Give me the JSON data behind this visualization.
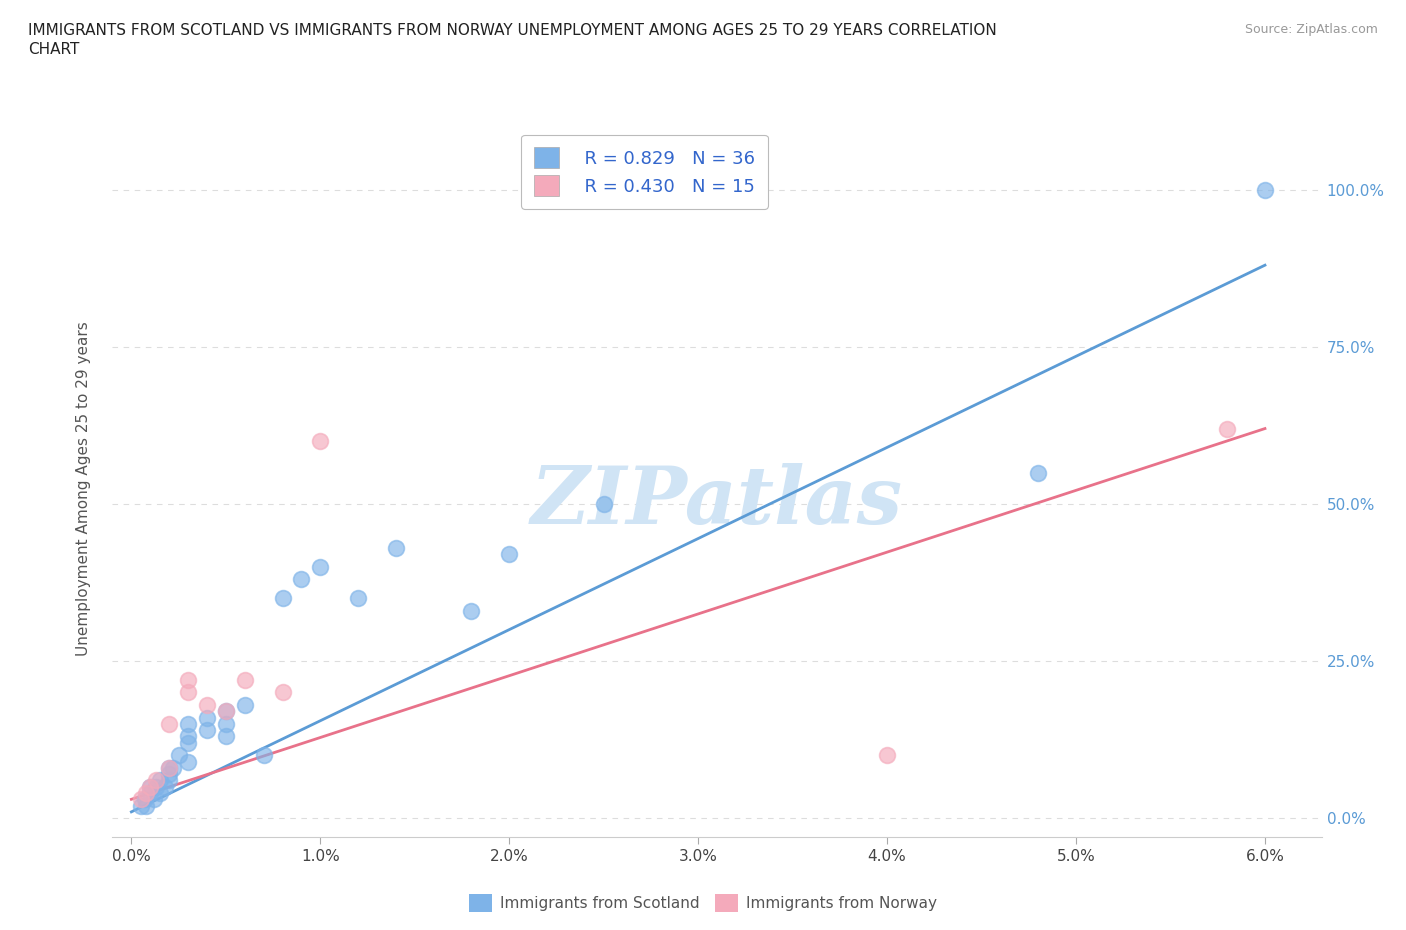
{
  "title_line1": "IMMIGRANTS FROM SCOTLAND VS IMMIGRANTS FROM NORWAY UNEMPLOYMENT AMONG AGES 25 TO 29 YEARS CORRELATION",
  "title_line2": "CHART",
  "source_text": "Source: ZipAtlas.com",
  "ylabel": "Unemployment Among Ages 25 to 29 years",
  "y_tick_labels": [
    "0.0%",
    "25.0%",
    "50.0%",
    "75.0%",
    "100.0%"
  ],
  "y_tick_values": [
    0.0,
    0.25,
    0.5,
    0.75,
    1.0
  ],
  "x_tick_values": [
    0.0,
    0.01,
    0.02,
    0.03,
    0.04,
    0.05,
    0.06
  ],
  "x_tick_labels": [
    "0.0%",
    "1.0%",
    "2.0%",
    "3.0%",
    "4.0%",
    "5.0%",
    "6.0%"
  ],
  "xlim": [
    -0.001,
    0.063
  ],
  "ylim": [
    -0.03,
    1.08
  ],
  "scotland_color": "#7EB3E8",
  "norway_color": "#F4AABB",
  "scotland_line_color": "#5B9BD5",
  "norway_line_color": "#E8728A",
  "scotland_R": 0.829,
  "scotland_N": 36,
  "norway_R": 0.43,
  "norway_N": 15,
  "watermark": "ZIPatlas",
  "watermark_color": "#D0E4F5",
  "scotland_scatter_x": [
    0.0005,
    0.0007,
    0.0008,
    0.001,
    0.001,
    0.0012,
    0.0013,
    0.0015,
    0.0015,
    0.0018,
    0.002,
    0.002,
    0.002,
    0.0022,
    0.0025,
    0.003,
    0.003,
    0.003,
    0.003,
    0.004,
    0.004,
    0.005,
    0.005,
    0.005,
    0.006,
    0.007,
    0.008,
    0.009,
    0.01,
    0.012,
    0.014,
    0.018,
    0.02,
    0.025,
    0.048,
    0.06
  ],
  "scotland_scatter_y": [
    0.02,
    0.03,
    0.02,
    0.04,
    0.05,
    0.03,
    0.05,
    0.04,
    0.06,
    0.05,
    0.06,
    0.07,
    0.08,
    0.08,
    0.1,
    0.09,
    0.12,
    0.13,
    0.15,
    0.14,
    0.16,
    0.13,
    0.15,
    0.17,
    0.18,
    0.1,
    0.35,
    0.38,
    0.4,
    0.35,
    0.43,
    0.33,
    0.42,
    0.5,
    0.55,
    1.0
  ],
  "norway_scatter_x": [
    0.0005,
    0.0008,
    0.001,
    0.0013,
    0.002,
    0.002,
    0.003,
    0.003,
    0.004,
    0.005,
    0.006,
    0.008,
    0.01,
    0.04,
    0.058
  ],
  "norway_scatter_y": [
    0.03,
    0.04,
    0.05,
    0.06,
    0.08,
    0.15,
    0.2,
    0.22,
    0.18,
    0.17,
    0.22,
    0.2,
    0.6,
    0.1,
    0.62
  ],
  "scotland_line_x": [
    0.0,
    0.06
  ],
  "scotland_line_y": [
    0.01,
    0.88
  ],
  "norway_line_x": [
    0.0,
    0.06
  ],
  "norway_line_y": [
    0.03,
    0.62
  ],
  "grid_color": "#DDDDDD",
  "right_tick_color": "#5B9BD5",
  "background_color": "#FFFFFF",
  "bottom_legend_label1": "Immigrants from Scotland",
  "bottom_legend_label2": "Immigrants from Norway"
}
